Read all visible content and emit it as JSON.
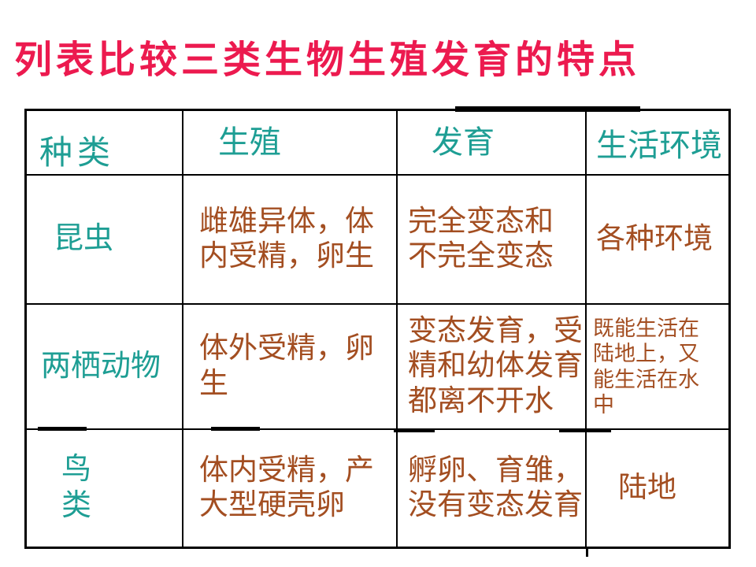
{
  "slide": {
    "title": "列表比较三类生物生殖发育的特点"
  },
  "colors": {
    "title_text": "#EC1A4F",
    "header_text": "#1E9E94",
    "species_text": "#1E9E94",
    "body_text": "#A34E21",
    "table_border": "#000000",
    "background": "#FFFFFF"
  },
  "table": {
    "headers": [
      "种类",
      "生殖",
      "发育",
      "生活环境"
    ],
    "rows": [
      {
        "species": "昆虫",
        "reproduction": "雌雄异体，体\n内受精，卵生",
        "development": "完全变态和\n不完全变态",
        "environment": "各种环境"
      },
      {
        "species": "两栖动物",
        "reproduction": "体外受精，卵\n生",
        "development": "变态发育，受\n精和幼体发育\n都离不开水",
        "environment": "既能生活在\n陆地上，又\n能生活在水\n中"
      },
      {
        "species": "鸟\n类",
        "reproduction": "体内受精，产\n大型硬壳卵",
        "development": "孵卵、育雏，\n没有变态发育",
        "environment": "陆地"
      }
    ]
  }
}
